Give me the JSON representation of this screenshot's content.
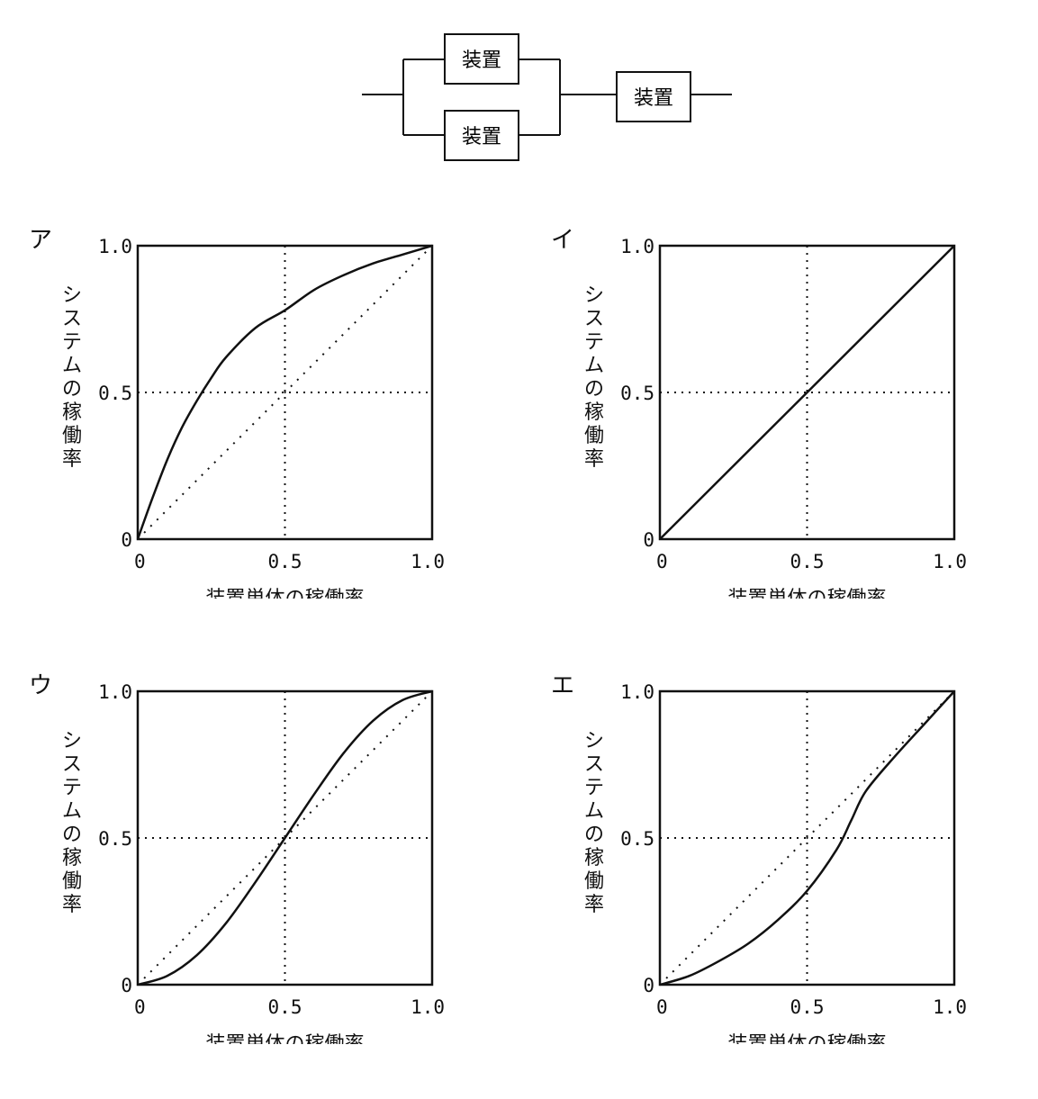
{
  "diagram": {
    "box_label": "装置"
  },
  "chart_data": [
    {
      "type": "line",
      "option_label": "ア",
      "xlabel": "装置単体の稼働率",
      "ylabel": "システムの稼働率",
      "xlim": [
        0,
        1
      ],
      "ylim": [
        0,
        1
      ],
      "x_ticks": [
        "0",
        "0.5",
        "1.0"
      ],
      "y_ticks": [
        "0",
        "0.5",
        "1.0"
      ],
      "reference_lines": {
        "x": 0.5,
        "y": 0.5,
        "diagonal": true
      },
      "series": [
        {
          "x": [
            0,
            0.05,
            0.1,
            0.15,
            0.2,
            0.25,
            0.3,
            0.4,
            0.5,
            0.6,
            0.7,
            0.8,
            0.9,
            1.0
          ],
          "y": [
            0,
            0.14,
            0.27,
            0.38,
            0.47,
            0.55,
            0.62,
            0.72,
            0.78,
            0.85,
            0.9,
            0.94,
            0.97,
            1.0
          ]
        }
      ]
    },
    {
      "type": "line",
      "option_label": "イ",
      "xlabel": "装置単体の稼働率",
      "ylabel": "システムの稼働率",
      "xlim": [
        0,
        1
      ],
      "ylim": [
        0,
        1
      ],
      "x_ticks": [
        "0",
        "0.5",
        "1.0"
      ],
      "y_ticks": [
        "0",
        "0.5",
        "1.0"
      ],
      "reference_lines": {
        "x": 0.5,
        "y": 0.5,
        "diagonal": false
      },
      "series": [
        {
          "x": [
            0,
            1.0
          ],
          "y": [
            0,
            1.0
          ]
        }
      ]
    },
    {
      "type": "line",
      "option_label": "ウ",
      "xlabel": "装置単体の稼働率",
      "ylabel": "システムの稼働率",
      "xlim": [
        0,
        1
      ],
      "ylim": [
        0,
        1
      ],
      "x_ticks": [
        "0",
        "0.5",
        "1.0"
      ],
      "y_ticks": [
        "0",
        "0.5",
        "1.0"
      ],
      "reference_lines": {
        "x": 0.5,
        "y": 0.5,
        "diagonal": true
      },
      "series": [
        {
          "x": [
            0,
            0.1,
            0.2,
            0.3,
            0.4,
            0.5,
            0.6,
            0.7,
            0.8,
            0.9,
            1.0
          ],
          "y": [
            0,
            0.03,
            0.1,
            0.21,
            0.35,
            0.5,
            0.65,
            0.79,
            0.9,
            0.97,
            1.0
          ]
        }
      ]
    },
    {
      "type": "line",
      "option_label": "エ",
      "xlabel": "装置単体の稼働率",
      "ylabel": "システムの稼働率",
      "xlim": [
        0,
        1
      ],
      "ylim": [
        0,
        1
      ],
      "x_ticks": [
        "0",
        "0.5",
        "1.0"
      ],
      "y_ticks": [
        "0",
        "0.5",
        "1.0"
      ],
      "reference_lines": {
        "x": 0.5,
        "y": 0.5,
        "diagonal": true
      },
      "series": [
        {
          "x": [
            0,
            0.1,
            0.2,
            0.3,
            0.4,
            0.5,
            0.6,
            0.65,
            0.7,
            0.8,
            0.9,
            1.0
          ],
          "y": [
            0,
            0.03,
            0.08,
            0.14,
            0.22,
            0.32,
            0.46,
            0.56,
            0.66,
            0.78,
            0.89,
            1.0
          ]
        }
      ]
    }
  ]
}
